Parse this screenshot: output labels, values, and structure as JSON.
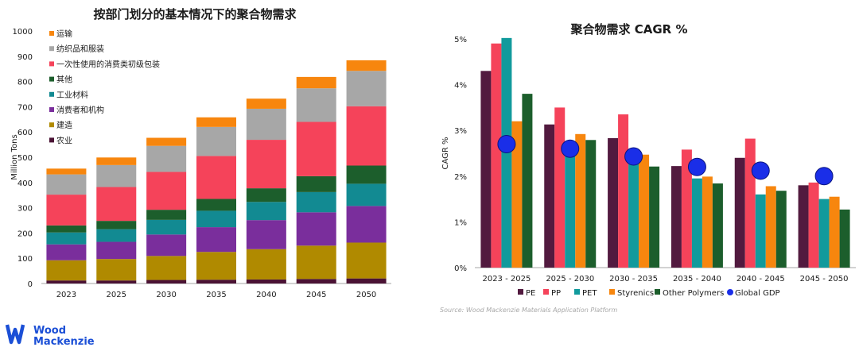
{
  "brand": {
    "line1": "Wood",
    "line2": "Mackenzie",
    "color": "#1b4fd6"
  },
  "source": "Source: Wood Mackenzie Materials Application Platform",
  "chart_data": [
    {
      "type": "bar",
      "stacked": true,
      "title": "按部门划分的基本情况下的聚合物需求",
      "ylabel": "Million Tons",
      "xlabel": "",
      "ylim": [
        0,
        1000
      ],
      "yticks": [
        0,
        100,
        200,
        300,
        400,
        500,
        600,
        700,
        800,
        900,
        1000
      ],
      "categories": [
        "2023",
        "2025",
        "2030",
        "2035",
        "2040",
        "2045",
        "2050"
      ],
      "legend_position": "top-left",
      "series": [
        {
          "name": "农业",
          "color": "#4a1234",
          "values": [
            12,
            12,
            14,
            15,
            16,
            18,
            20
          ]
        },
        {
          "name": "建造",
          "color": "#b08a00",
          "values": [
            80,
            85,
            95,
            110,
            120,
            132,
            142
          ]
        },
        {
          "name": "消费者和机构",
          "color": "#7a2e9c",
          "values": [
            63,
            68,
            85,
            98,
            115,
            132,
            145
          ]
        },
        {
          "name": "工业材料",
          "color": "#128a92",
          "values": [
            47,
            50,
            58,
            65,
            72,
            80,
            88
          ]
        },
        {
          "name": "其他",
          "color": "#1c5e2c",
          "values": [
            28,
            33,
            40,
            47,
            54,
            63,
            72
          ]
        },
        {
          "name": "一次性使用的消费类初级包装",
          "color": "#f5435a",
          "values": [
            122,
            134,
            150,
            170,
            192,
            215,
            235
          ]
        },
        {
          "name": "纺织品和服装",
          "color": "#a7a7a7",
          "values": [
            80,
            87,
            103,
            115,
            123,
            133,
            140
          ]
        },
        {
          "name": "运输",
          "color": "#f7860e",
          "values": [
            23,
            30,
            32,
            38,
            40,
            45,
            42
          ]
        }
      ]
    },
    {
      "type": "bar",
      "title": "聚合物需求  CAGR %",
      "ylabel": "CAGR %",
      "xlabel": "",
      "ylim": [
        0,
        5
      ],
      "yticks": [
        0,
        1,
        2,
        3,
        4,
        5
      ],
      "ytick_suffix": "%",
      "categories": [
        "2023 - 2025",
        "2025 - 2030",
        "2030 - 2035",
        "2035 - 2040",
        "2040 - 2045",
        "2045 - 2050"
      ],
      "legend_position": "bottom",
      "series": [
        {
          "name": "PE",
          "color": "#521a3f",
          "values": [
            4.3,
            3.13,
            2.83,
            2.22,
            2.4,
            1.8
          ]
        },
        {
          "name": "PP",
          "color": "#f5435a",
          "values": [
            4.9,
            3.5,
            3.35,
            2.58,
            2.82,
            1.86
          ]
        },
        {
          "name": "PET",
          "color": "#119a9c",
          "values": [
            5.02,
            2.6,
            2.35,
            1.95,
            1.6,
            1.5
          ]
        },
        {
          "name": "Styrenics",
          "color": "#f7860e",
          "values": [
            3.2,
            2.92,
            2.47,
            1.99,
            1.78,
            1.55
          ]
        },
        {
          "name": "Other Polymers",
          "color": "#1c5e2c",
          "values": [
            3.8,
            2.79,
            2.21,
            1.84,
            1.68,
            1.27
          ]
        }
      ],
      "overlay": {
        "name": "Global GDP",
        "color": "#1a2ee8",
        "values": [
          2.7,
          2.6,
          2.43,
          2.2,
          2.12,
          2.0
        ]
      }
    }
  ]
}
